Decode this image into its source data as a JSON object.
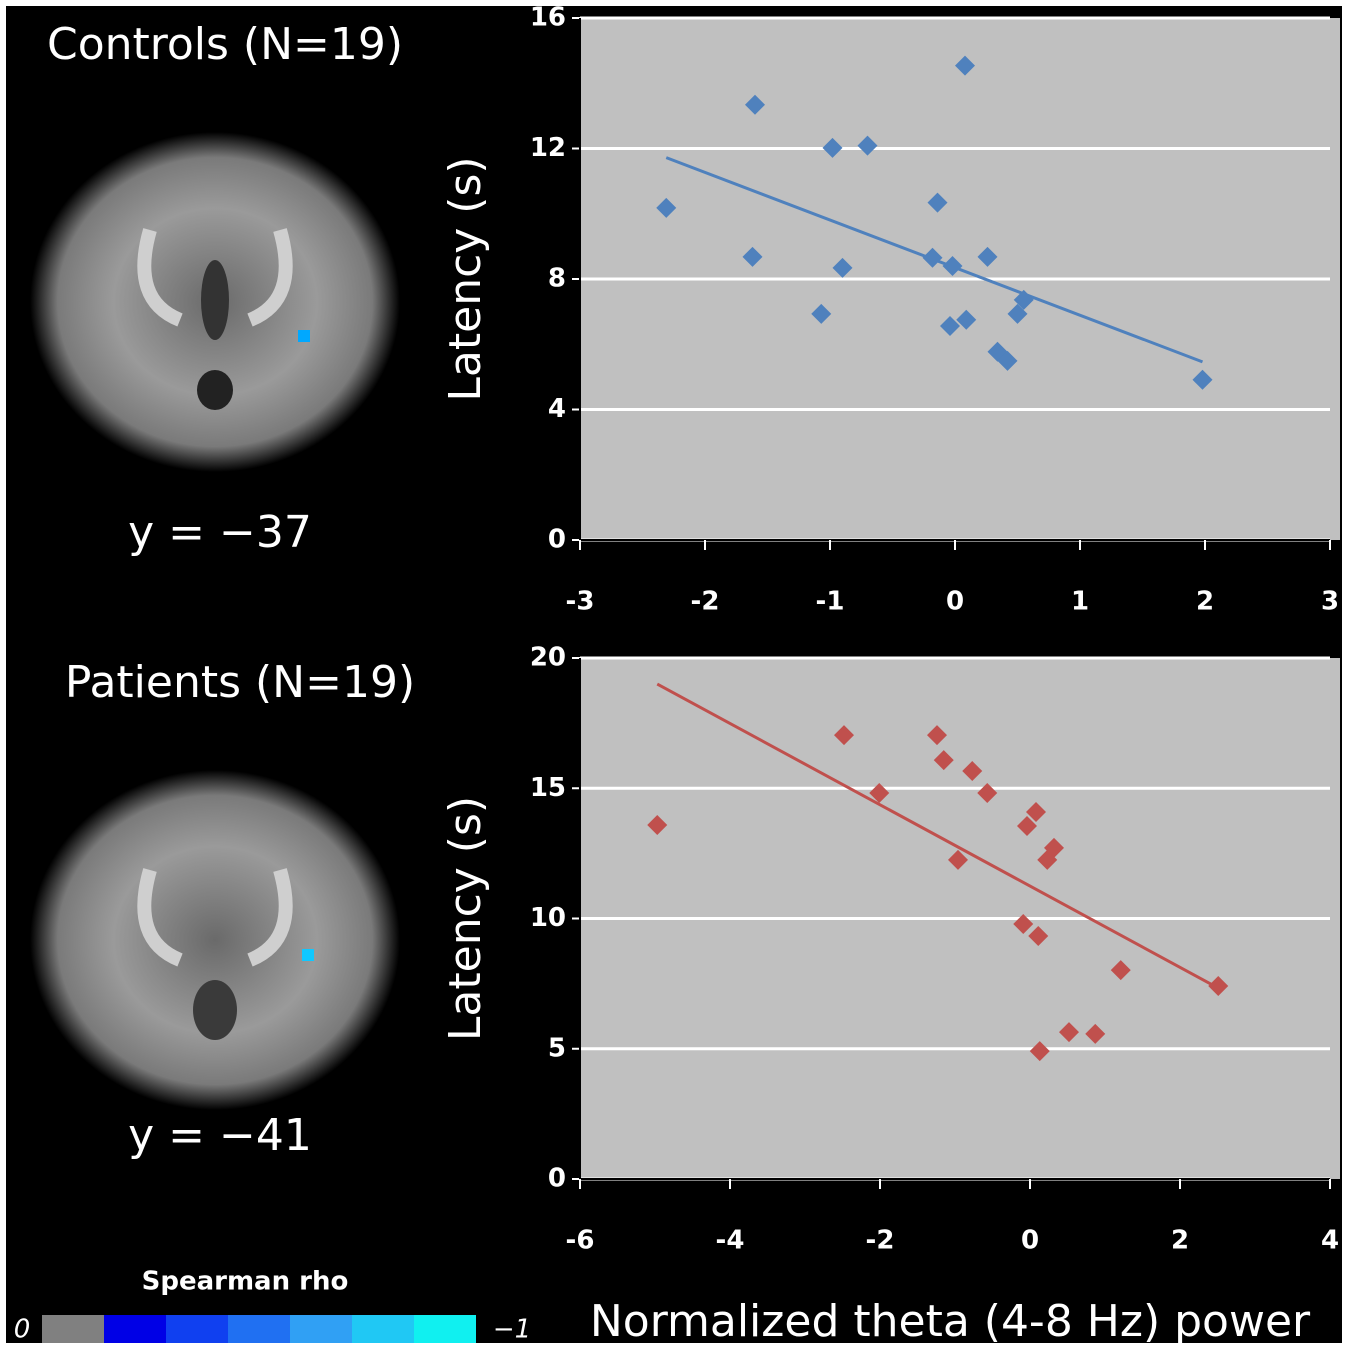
{
  "chart_data": [
    {
      "type": "scatter",
      "ylabel": "Latency (s)",
      "color": "#4f81bd",
      "grid": true,
      "xlim": [
        -3,
        3
      ],
      "xticks": [
        -3,
        -2,
        -1,
        0,
        1,
        2,
        3
      ],
      "ylim": [
        0,
        16
      ],
      "yticks": [
        0,
        4,
        8,
        12,
        16
      ],
      "x": [
        -2.31,
        -1.6,
        -1.62,
        -0.98,
        -0.7,
        -1.07,
        -0.9,
        0.08,
        -0.14,
        -0.18,
        -0.02,
        0.26,
        -0.04,
        0.09,
        0.55,
        0.5,
        0.34,
        0.42,
        1.98
      ],
      "values": [
        10.18,
        13.34,
        8.68,
        12.02,
        12.09,
        6.93,
        8.34,
        14.54,
        10.34,
        8.65,
        8.4,
        8.68,
        6.56,
        6.75,
        7.36,
        6.93,
        5.77,
        5.49,
        4.91
      ],
      "trendline": {
        "x": [
          -2.31,
          1.98
        ],
        "values": [
          11.72,
          5.46
        ]
      }
    },
    {
      "type": "scatter",
      "ylabel": "Latency (s)",
      "xlabel": "Normalized theta (4-8 Hz) power",
      "color": "#c0504d",
      "grid": true,
      "xlim": [
        -6,
        4
      ],
      "xticks": [
        -6,
        -4,
        -2,
        0,
        2,
        4
      ],
      "ylim": [
        0,
        20
      ],
      "yticks": [
        0,
        5,
        10,
        15,
        20
      ],
      "x": [
        -4.97,
        -2.48,
        -2.01,
        -1.24,
        -1.15,
        -0.96,
        -0.77,
        -0.57,
        0.08,
        -0.04,
        0.32,
        0.23,
        -0.09,
        0.11,
        1.21,
        2.51,
        0.52,
        0.87,
        0.13
      ],
      "values": [
        13.59,
        17.04,
        14.82,
        17.04,
        16.08,
        12.25,
        15.66,
        14.82,
        14.09,
        13.55,
        12.71,
        12.25,
        9.79,
        9.33,
        8.02,
        7.41,
        5.64,
        5.57,
        4.91
      ],
      "trendline": {
        "x": [
          -4.97,
          2.51
        ],
        "values": [
          19.0,
          7.33
        ]
      }
    }
  ],
  "panels": [
    {
      "title": "Controls (N=19)",
      "slice": "y = −37"
    },
    {
      "title": "Patients (N=19)",
      "slice": "y = −41"
    }
  ],
  "colorbar": {
    "label": "Spearman rho",
    "ticks": [
      0,
      {
        "value": -1,
        "label": "−1"
      }
    ],
    "colors": [
      "#808080",
      "#0000e6",
      "#1040f0",
      "#2070f2",
      "#30a0f4",
      "#20c8f4",
      "#10f0f0"
    ]
  }
}
